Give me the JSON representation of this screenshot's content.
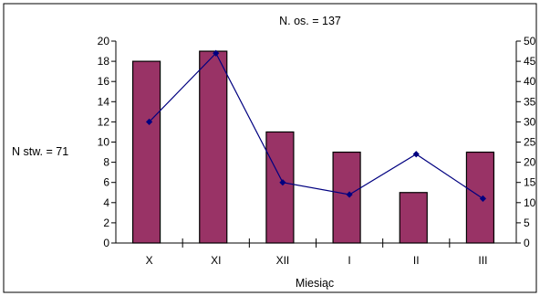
{
  "chart_data": {
    "type": "bar",
    "xlabel": "Miesiąc",
    "categories": [
      "X",
      "XI",
      "XII",
      "I",
      "II",
      "III"
    ],
    "series": [
      {
        "values": [
          18,
          19,
          11,
          9,
          5,
          9
        ],
        "axis": "left",
        "kind": "bar"
      },
      {
        "values": [
          30,
          47,
          15,
          12,
          22,
          11
        ],
        "axis": "right",
        "kind": "line"
      }
    ],
    "y_left": {
      "lim": [
        0,
        20
      ],
      "ticks": [
        0,
        2,
        4,
        6,
        8,
        10,
        12,
        14,
        16,
        18,
        20
      ]
    },
    "y_right": {
      "lim": [
        0,
        50
      ],
      "ticks": [
        0,
        5,
        10,
        15,
        20,
        25,
        30,
        35,
        40,
        45,
        50
      ]
    },
    "annotations": {
      "top": "N. os. = 137",
      "left": "N stw. = 71"
    },
    "grid": false,
    "legend": "none",
    "colors": {
      "bar_fill": "#993366",
      "bar_stroke": "#000000",
      "line": "#000080",
      "marker": "#000080",
      "frame": "#000000"
    }
  }
}
